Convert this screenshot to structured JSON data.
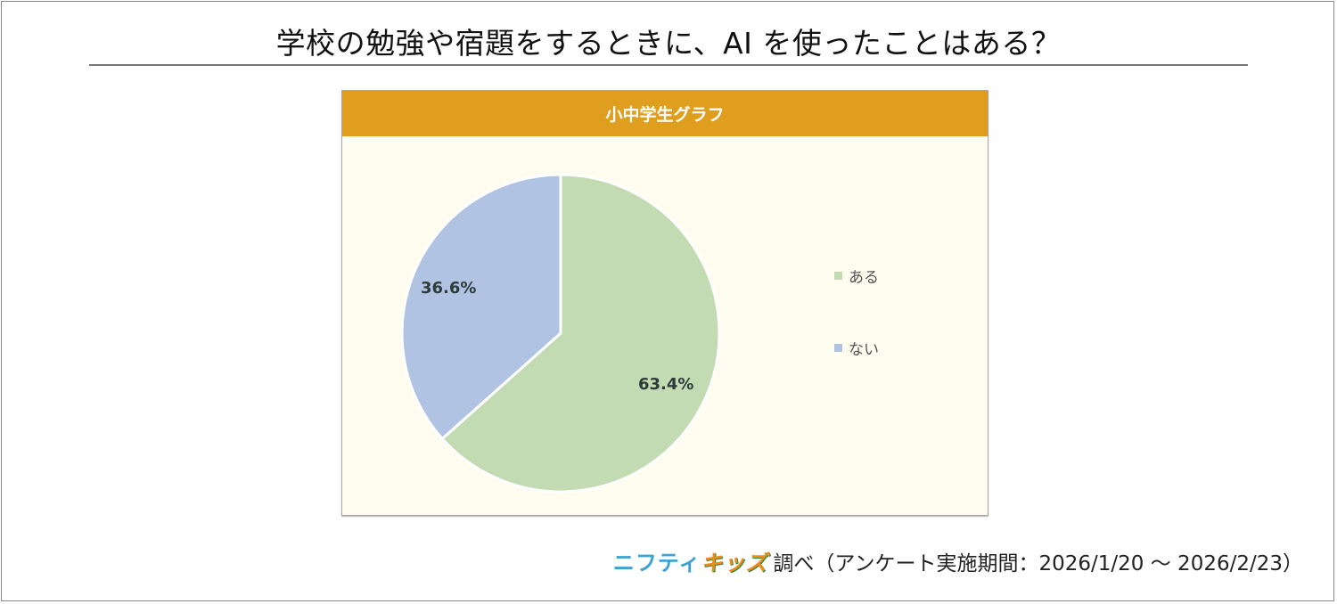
{
  "title": "学校の勉強や宿題をするときに、AI を使ったことはある？",
  "chart_header": "小中学生グラフ",
  "footer": {
    "brand_part1": "ニフティ",
    "brand_part2": "キッズ",
    "text": "調べ（アンケート実施期間：2026/1/20 ～ 2026/2/23）"
  },
  "colors": {
    "header": "#e09e1e",
    "plot_bg": "#fdfcee",
    "aru": "#c3dbb2",
    "nai": "#b0c3e3"
  },
  "slices": [
    {
      "label": "ある",
      "value": 63.4,
      "display": "63.4%",
      "color": "#c3dbb2"
    },
    {
      "label": "ない",
      "value": 36.6,
      "display": "36.6%",
      "color": "#b0c3e3"
    }
  ],
  "chart_data": {
    "type": "pie",
    "title": "学校の勉強や宿題をするときに、AI を使ったことはある？",
    "subtitle": "小中学生グラフ",
    "categories": [
      "ある",
      "ない"
    ],
    "values": [
      63.4,
      36.6
    ],
    "unit": "%",
    "data_labels": [
      "63.4%",
      "36.6%"
    ],
    "legend_position": "right",
    "start_angle": "12 o'clock, clockwise"
  }
}
